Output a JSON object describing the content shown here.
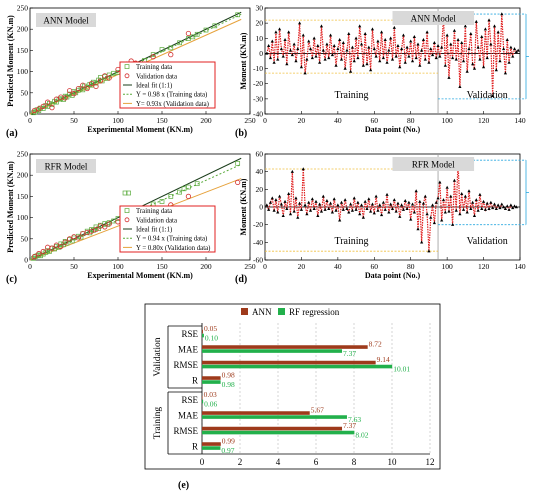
{
  "chart_data": [
    {
      "id": "a",
      "panel_label": "(a)",
      "type": "scatter",
      "title": "ANN Model",
      "xlabel": "Experimental Moment (KN.m)",
      "ylabel": "Predicted Moment (KN.m)",
      "xlim": [
        0,
        250
      ],
      "ylim": [
        0,
        250
      ],
      "xticks": [
        "0",
        "50",
        "100",
        "150",
        "200",
        "250"
      ],
      "yticks": [
        "0",
        "50",
        "100",
        "150",
        "200",
        "250"
      ],
      "legend": [
        "Training data",
        "Validation data",
        "Ideal fit (1:1)",
        "Y = 0.98 x (Training data)",
        "Y= 0.93x (Validation data)"
      ],
      "fit_slopes": {
        "ideal": 1.0,
        "training": 0.98,
        "validation": 0.93
      },
      "training_points": [
        [
          4,
          3
        ],
        [
          6,
          5
        ],
        [
          8,
          10
        ],
        [
          10,
          8
        ],
        [
          12,
          14
        ],
        [
          15,
          13
        ],
        [
          18,
          20
        ],
        [
          20,
          18
        ],
        [
          22,
          25
        ],
        [
          25,
          22
        ],
        [
          28,
          30
        ],
        [
          30,
          28
        ],
        [
          33,
          35
        ],
        [
          35,
          36
        ],
        [
          38,
          34
        ],
        [
          40,
          42
        ],
        [
          42,
          40
        ],
        [
          45,
          47
        ],
        [
          48,
          44
        ],
        [
          50,
          53
        ],
        [
          52,
          50
        ],
        [
          55,
          56
        ],
        [
          58,
          60
        ],
        [
          60,
          57
        ],
        [
          62,
          66
        ],
        [
          65,
          63
        ],
        [
          68,
          70
        ],
        [
          70,
          68
        ],
        [
          72,
          75
        ],
        [
          75,
          73
        ],
        [
          78,
          80
        ],
        [
          80,
          86
        ],
        [
          82,
          78
        ],
        [
          85,
          88
        ],
        [
          88,
          84
        ],
        [
          90,
          92
        ],
        [
          95,
          96
        ],
        [
          100,
          98
        ],
        [
          105,
          108
        ],
        [
          110,
          110
        ],
        [
          120,
          118
        ],
        [
          130,
          126
        ],
        [
          140,
          140
        ],
        [
          150,
          152
        ],
        [
          160,
          156
        ],
        [
          170,
          168
        ],
        [
          180,
          178
        ],
        [
          185,
          182
        ],
        [
          190,
          188
        ],
        [
          200,
          198
        ],
        [
          210,
          208
        ],
        [
          236,
          234
        ]
      ],
      "validation_points": [
        [
          5,
          8
        ],
        [
          10,
          12
        ],
        [
          15,
          18
        ],
        [
          20,
          28
        ],
        [
          25,
          15
        ],
        [
          30,
          35
        ],
        [
          35,
          40
        ],
        [
          40,
          38
        ],
        [
          45,
          55
        ],
        [
          50,
          48
        ],
        [
          55,
          60
        ],
        [
          60,
          68
        ],
        [
          65,
          60
        ],
        [
          70,
          72
        ],
        [
          75,
          65
        ],
        [
          80,
          78
        ],
        [
          85,
          90
        ],
        [
          90,
          85
        ],
        [
          100,
          105
        ],
        [
          110,
          118
        ],
        [
          115,
          125
        ],
        [
          120,
          120
        ],
        [
          130,
          118
        ],
        [
          140,
          135
        ],
        [
          160,
          140
        ],
        [
          180,
          190
        ]
      ]
    },
    {
      "id": "b",
      "panel_label": "(b)",
      "type": "line",
      "title": "ANN Model",
      "xlabel": "Data point (No.)",
      "ylabel": "Moment (KN.m)",
      "xlim": [
        0,
        140
      ],
      "ylim": [
        -40,
        30
      ],
      "xticks": [
        "0",
        "20",
        "40",
        "60",
        "80",
        "100",
        "120",
        "140"
      ],
      "yticks": [
        "-40",
        "-30",
        "-20",
        "-10",
        "0",
        "10",
        "20",
        "30"
      ],
      "region_labels": [
        "Training",
        "Validation"
      ],
      "split_at": 95,
      "training_band": [
        -13,
        22
      ],
      "validation_band": [
        -30,
        26
      ],
      "series": [
        {
          "values": [
            0,
            5,
            -3,
            8,
            -6,
            14,
            -4,
            16,
            3,
            -2,
            9,
            -7,
            14,
            2,
            -1,
            6,
            -5,
            3,
            20,
            -9,
            12,
            -13,
            -4,
            8,
            3,
            -3,
            10,
            -2,
            5,
            -6,
            18,
            2,
            -4,
            6,
            -3,
            12,
            -1,
            5,
            -8,
            3,
            9,
            -4,
            7,
            -10,
            2,
            13,
            -12,
            4,
            -5,
            10,
            -3,
            18,
            6,
            -8,
            13,
            -7,
            4,
            -11,
            16,
            3,
            -2,
            8,
            -5,
            14,
            -3,
            9,
            -6,
            2,
            10,
            -4,
            17,
            -2,
            5,
            -9,
            3,
            12,
            -6,
            4,
            -2,
            8,
            -5,
            11,
            -3,
            6,
            -8,
            2,
            9,
            -4,
            14,
            -6,
            3,
            -1,
            7,
            -3,
            5,
            -2,
            4,
            24,
            -8,
            12,
            -16,
            6,
            -3,
            15,
            -4,
            9,
            -22,
            7,
            -5,
            18,
            -12,
            3,
            13,
            -7,
            -10,
            21,
            4,
            -4,
            11,
            -9,
            16,
            -3,
            22,
            6,
            -28,
            18,
            -11,
            14,
            -5,
            26,
            3,
            -13,
            9,
            -6,
            4,
            -2,
            3,
            1,
            2
          ]
        }
      ]
    },
    {
      "id": "c",
      "panel_label": "(c)",
      "type": "scatter",
      "title": "RFR Model",
      "xlabel": "Experimental Moment (KN.m)",
      "ylabel": "Predicted Moment (KN.m)",
      "xlim": [
        0,
        250
      ],
      "ylim": [
        0,
        250
      ],
      "xticks": [
        "0",
        "50",
        "100",
        "150",
        "200",
        "250"
      ],
      "yticks": [
        "0",
        "50",
        "100",
        "150",
        "200",
        "250"
      ],
      "legend": [
        "Training data",
        "Validation data",
        "Ideal fit (1:1)",
        "Y = 0.94 x (Training data)",
        "Y = 0.80x (Validation data)"
      ],
      "fit_slopes": {
        "ideal": 1.0,
        "training": 0.94,
        "validation": 0.8
      },
      "training_points": [
        [
          4,
          4
        ],
        [
          6,
          8
        ],
        [
          8,
          10
        ],
        [
          10,
          12
        ],
        [
          12,
          10
        ],
        [
          15,
          14
        ],
        [
          18,
          18
        ],
        [
          20,
          22
        ],
        [
          22,
          20
        ],
        [
          25,
          28
        ],
        [
          28,
          26
        ],
        [
          30,
          32
        ],
        [
          33,
          30
        ],
        [
          35,
          38
        ],
        [
          38,
          36
        ],
        [
          40,
          44
        ],
        [
          42,
          40
        ],
        [
          45,
          48
        ],
        [
          48,
          45
        ],
        [
          50,
          52
        ],
        [
          55,
          56
        ],
        [
          58,
          54
        ],
        [
          60,
          62
        ],
        [
          65,
          68
        ],
        [
          68,
          64
        ],
        [
          70,
          72
        ],
        [
          72,
          70
        ],
        [
          75,
          78
        ],
        [
          78,
          74
        ],
        [
          80,
          82
        ],
        [
          85,
          86
        ],
        [
          88,
          84
        ],
        [
          90,
          88
        ],
        [
          95,
          92
        ],
        [
          100,
          98
        ],
        [
          105,
          100
        ],
        [
          108,
          158
        ],
        [
          112,
          158
        ],
        [
          120,
          110
        ],
        [
          130,
          122
        ],
        [
          140,
          132
        ],
        [
          150,
          138
        ],
        [
          160,
          150
        ],
        [
          170,
          160
        ],
        [
          175,
          168
        ],
        [
          180,
          172
        ],
        [
          190,
          180
        ],
        [
          236,
          228
        ]
      ],
      "validation_points": [
        [
          5,
          8
        ],
        [
          10,
          15
        ],
        [
          15,
          20
        ],
        [
          20,
          30
        ],
        [
          25,
          28
        ],
        [
          30,
          35
        ],
        [
          35,
          32
        ],
        [
          40,
          42
        ],
        [
          45,
          50
        ],
        [
          50,
          55
        ],
        [
          55,
          52
        ],
        [
          60,
          62
        ],
        [
          65,
          65
        ],
        [
          70,
          68
        ],
        [
          75,
          72
        ],
        [
          80,
          80
        ],
        [
          85,
          78
        ],
        [
          90,
          85
        ],
        [
          100,
          90
        ],
        [
          120,
          118
        ],
        [
          140,
          120
        ],
        [
          160,
          130
        ],
        [
          180,
          150
        ],
        [
          236,
          183
        ]
      ]
    },
    {
      "id": "d",
      "panel_label": "(d)",
      "type": "line",
      "title": "RFR Model",
      "xlabel": "Data point (No.)",
      "ylabel": "Moment (KN.m)",
      "xlim": [
        0,
        140
      ],
      "ylim": [
        -60,
        60
      ],
      "xticks": [
        "0",
        "20",
        "40",
        "60",
        "80",
        "100",
        "120",
        "140"
      ],
      "yticks": [
        "-60",
        "-40",
        "-20",
        "0",
        "20",
        "40",
        "60"
      ],
      "region_labels": [
        "Training",
        "Validation"
      ],
      "split_at": 95,
      "training_band": [
        -50,
        43
      ],
      "validation_band": [
        -20,
        53
      ],
      "series": [
        {
          "values": [
            2,
            -3,
            5,
            10,
            -4,
            8,
            -6,
            12,
            3,
            -10,
            6,
            -2,
            15,
            -8,
            40,
            -5,
            10,
            -12,
            4,
            -3,
            43,
            2,
            -8,
            5,
            -4,
            9,
            -2,
            6,
            -10,
            3,
            -5,
            12,
            -3,
            7,
            -2,
            4,
            -6,
            9,
            -4,
            2,
            -15,
            5,
            -3,
            8,
            -2,
            -6,
            3,
            -4,
            10,
            -3,
            5,
            -8,
            2,
            -12,
            6,
            -2,
            9,
            -5,
            3,
            -7,
            12,
            -4,
            2,
            -9,
            5,
            -3,
            14,
            -6,
            3,
            -2,
            8,
            -5,
            4,
            -11,
            2,
            -3,
            7,
            -2,
            5,
            -14,
            3,
            -6,
            18,
            -25,
            6,
            -40,
            4,
            12,
            -8,
            -50,
            -12,
            2,
            -18,
            5,
            10,
            28,
            -15,
            8,
            -6,
            22,
            -5,
            12,
            -20,
            30,
            -4,
            53,
            -8,
            15,
            -3,
            12,
            -6,
            18,
            -2,
            5,
            -10,
            8,
            -4,
            14,
            -2,
            6,
            -3,
            4,
            -2,
            5,
            -1,
            3,
            -2,
            2,
            -1,
            3,
            0,
            -2,
            1,
            -3,
            2,
            -1,
            1,
            0
          ]
        }
      ]
    },
    {
      "id": "e",
      "panel_label": "(e)",
      "type": "bar",
      "orientation": "horizontal",
      "legend": [
        "ANN",
        "RF regression"
      ],
      "xlim": [
        0,
        12
      ],
      "xticks": [
        "0",
        "2",
        "4",
        "6",
        "8",
        "10",
        "12"
      ],
      "groups": [
        {
          "name": "Validation",
          "metrics": [
            "RSE",
            "MAE",
            "RMSE",
            "R"
          ],
          "ANN": [
            0.05,
            8.72,
            9.14,
            0.98
          ],
          "RF regression": [
            0.1,
            7.37,
            10.01,
            0.98
          ]
        },
        {
          "name": "Training",
          "metrics": [
            "RSE",
            "MAE",
            "RMSE",
            "R"
          ],
          "ANN": [
            0.03,
            5.67,
            7.37,
            0.99
          ],
          "RF regression": [
            0.06,
            7.63,
            8.02,
            0.97
          ]
        }
      ],
      "colors": {
        "ANN": "#9e3a1b",
        "RF regression": "#22b04b"
      }
    }
  ],
  "colors": {
    "training": "#5aab3c",
    "validation": "#d32f2f",
    "ideal": "#1a3d1a",
    "band_training": "#f0c040",
    "band_validation": "#29a8e0",
    "title_box": "#d9d9d9",
    "legend_border": "#e02020"
  }
}
